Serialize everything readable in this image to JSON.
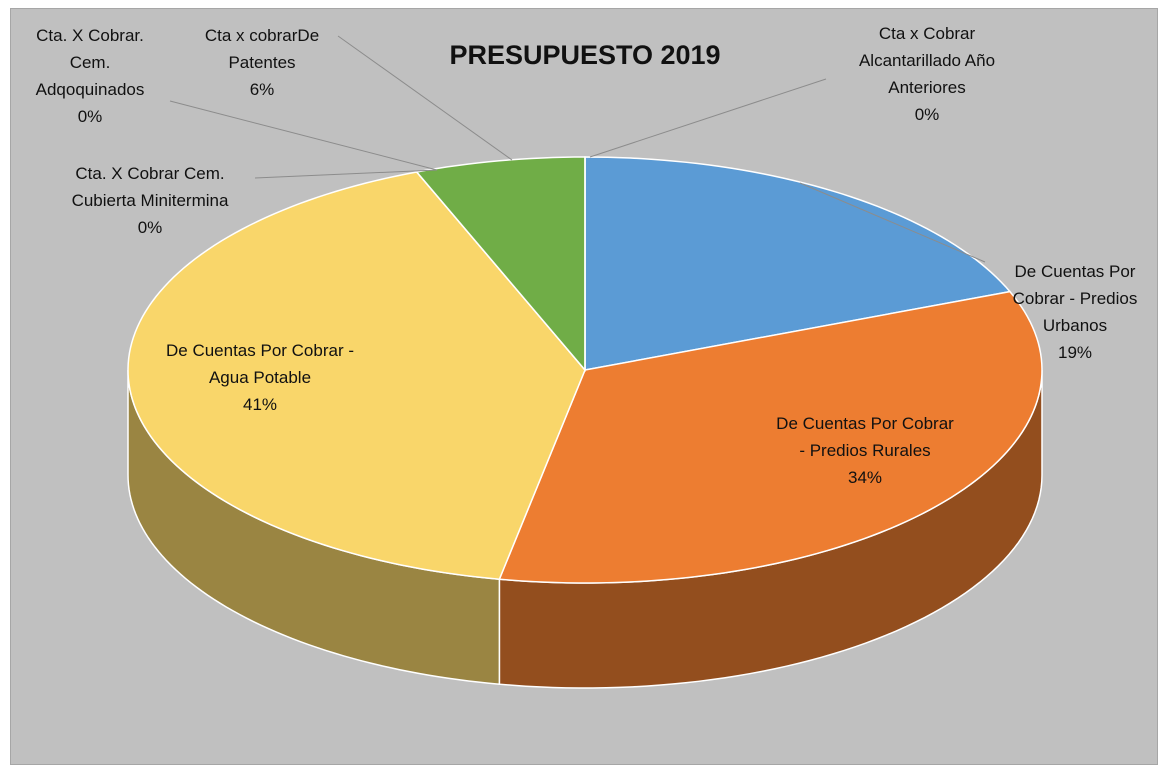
{
  "chart_data": {
    "type": "pie3d",
    "title": "PRESUPUESTO 2019",
    "categories": [
      "De Cuentas Por Cobrar - Predios Urbanos",
      "De Cuentas Por Cobrar - Predios Rurales",
      "De Cuentas Por Cobrar - Agua Potable",
      "Cta. X Cobrar Cem. Cubierta Minitermina",
      "Cta. X Cobrar. Cem. Adqoquinados",
      "Cta x cobrarDe Patentes",
      "Cta x Cobrar Alcantarillado Año Anteriores"
    ],
    "values": [
      19,
      34,
      41,
      0,
      0,
      6,
      0
    ],
    "value_labels": [
      "19%",
      "34%",
      "41%",
      "0%",
      "0%",
      "6%",
      "0%"
    ],
    "colors": [
      "#5b9bd5",
      "#ed7d31",
      "#f9d66a",
      "#a5a5a5",
      "#264478",
      "#70ad47",
      "#9dc3e6"
    ]
  }
}
